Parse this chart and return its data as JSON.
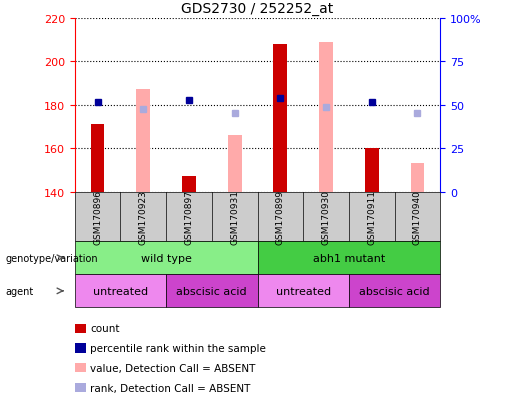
{
  "title": "GDS2730 / 252252_at",
  "samples": [
    "GSM170896",
    "GSM170923",
    "GSM170897",
    "GSM170931",
    "GSM170899",
    "GSM170930",
    "GSM170911",
    "GSM170940"
  ],
  "count_values": [
    171,
    null,
    147,
    null,
    208,
    null,
    160,
    null
  ],
  "pink_bar_values": [
    null,
    187,
    null,
    166,
    null,
    209,
    null,
    153
  ],
  "blue_square_values": [
    181,
    null,
    182,
    null,
    183,
    null,
    181,
    null
  ],
  "lavender_square_values": [
    null,
    178,
    null,
    176,
    null,
    179,
    null,
    176
  ],
  "ylim_left": [
    140,
    220
  ],
  "ylim_right": [
    0,
    100
  ],
  "yticks_left": [
    140,
    160,
    180,
    200,
    220
  ],
  "yticks_right": [
    0,
    25,
    50,
    75,
    100
  ],
  "ytick_labels_right": [
    "0",
    "25",
    "50",
    "75",
    "100%"
  ],
  "count_color": "#cc0000",
  "pink_color": "#ffaaaa",
  "blue_color": "#000099",
  "lavender_color": "#aaaadd",
  "plot_bg": "#ffffff",
  "gray_bg": "#cccccc",
  "genotype_groups": [
    {
      "label": "wild type",
      "start": 0,
      "end": 4,
      "color": "#88ee88"
    },
    {
      "label": "abh1 mutant",
      "start": 4,
      "end": 8,
      "color": "#44cc44"
    }
  ],
  "agent_groups": [
    {
      "label": "untreated",
      "start": 0,
      "end": 2,
      "color": "#ee88ee"
    },
    {
      "label": "abscisic acid",
      "start": 2,
      "end": 4,
      "color": "#cc44cc"
    },
    {
      "label": "untreated",
      "start": 4,
      "end": 6,
      "color": "#ee88ee"
    },
    {
      "label": "abscisic acid",
      "start": 6,
      "end": 8,
      "color": "#cc44cc"
    }
  ],
  "legend_items": [
    {
      "label": "count",
      "color": "#cc0000"
    },
    {
      "label": "percentile rank within the sample",
      "color": "#000099"
    },
    {
      "label": "value, Detection Call = ABSENT",
      "color": "#ffaaaa"
    },
    {
      "label": "rank, Detection Call = ABSENT",
      "color": "#aaaadd"
    }
  ],
  "left_labels": [
    "genotype/variation",
    "agent"
  ]
}
